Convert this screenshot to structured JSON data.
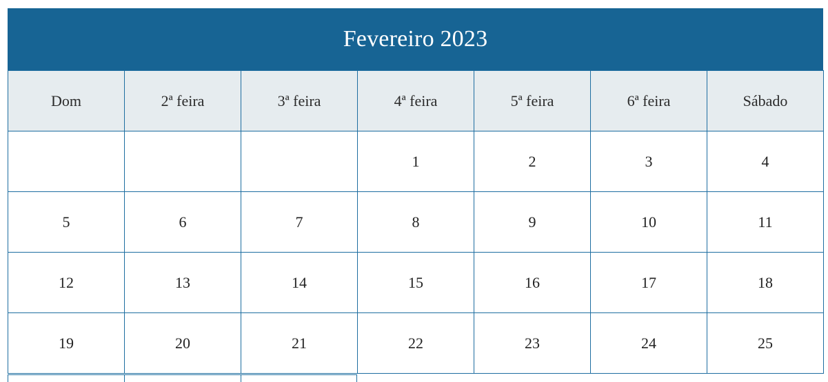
{
  "calendar": {
    "title": "Fevereiro 2023",
    "weekdays": [
      "Dom",
      "2ª feira",
      "3ª feira",
      "4ª feira",
      "5ª feira",
      "6ª feira",
      "Sábado"
    ],
    "weeks": [
      [
        "",
        "",
        "",
        "1",
        "2",
        "3",
        "4"
      ],
      [
        "5",
        "6",
        "7",
        "8",
        "9",
        "10",
        "11"
      ],
      [
        "12",
        "13",
        "14",
        "15",
        "16",
        "17",
        "18"
      ],
      [
        "19",
        "20",
        "21",
        "22",
        "23",
        "24",
        "25"
      ]
    ]
  },
  "colors": {
    "header_bar": "#176494",
    "weekday_row": "#e6ecef",
    "grid_lines": "#1d6da0"
  }
}
